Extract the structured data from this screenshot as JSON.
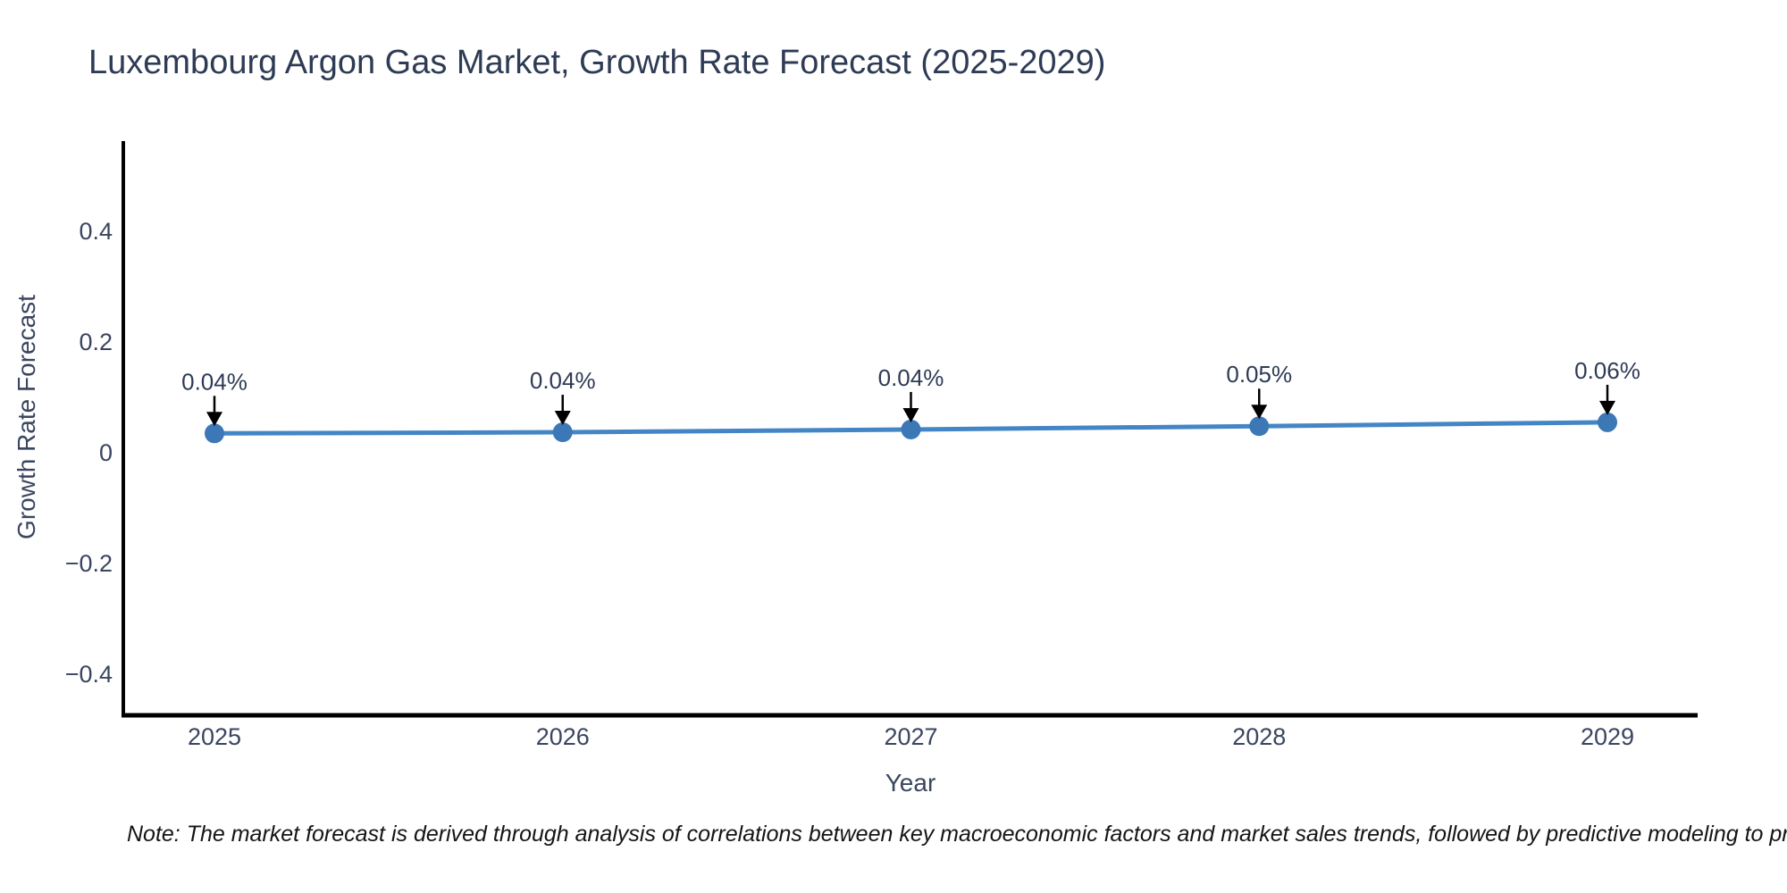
{
  "page": {
    "background": "#ffffff"
  },
  "note": "Note: The market forecast is derived through analysis of correlations between key macroeconomic factors and market sales trends, followed by predictive modeling to project future sales",
  "chart_data": {
    "type": "line",
    "title": "Luxembourg Argon Gas Market, Growth Rate Forecast (2025-2029)",
    "xlabel": "Year",
    "ylabel": "Growth Rate Forecast",
    "x": [
      "2025",
      "2026",
      "2027",
      "2028",
      "2029"
    ],
    "series": [
      {
        "name": "Growth Rate Forecast",
        "values": [
          0.04,
          0.04,
          0.04,
          0.05,
          0.06
        ]
      }
    ],
    "point_labels": [
      "0.04%",
      "0.04%",
      "0.04%",
      "0.05%",
      "0.06%"
    ],
    "underlying_values_estimate": [
      0.035,
      0.037,
      0.042,
      0.048,
      0.055
    ],
    "yticks": [
      {
        "value": 0.4,
        "label": "0.4"
      },
      {
        "value": 0.2,
        "label": "0.2"
      },
      {
        "value": 0,
        "label": "0"
      },
      {
        "value": -0.2,
        "label": "−0.2"
      },
      {
        "value": -0.4,
        "label": "−0.4"
      }
    ],
    "ylim": [
      -0.48,
      0.56
    ],
    "grid": false,
    "legend": "none",
    "colors": {
      "line": "#4486C5",
      "marker": "#3C77B6",
      "axis": "#000000",
      "text": "#2E3B55",
      "tick_text": "#3A4560",
      "annotation_arrow": "#000000"
    }
  }
}
